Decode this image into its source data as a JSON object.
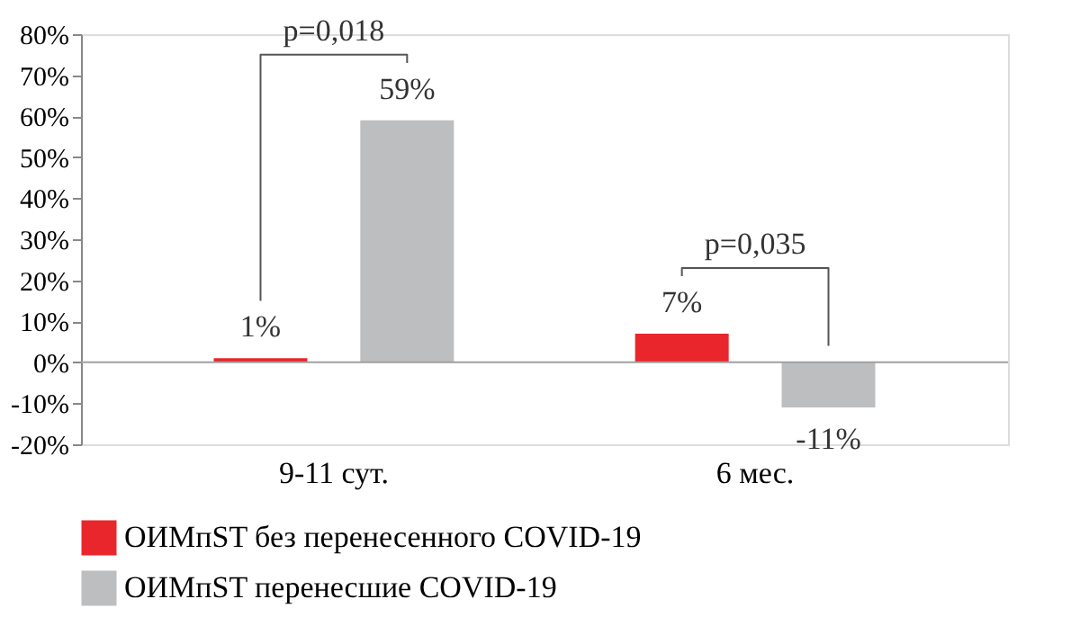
{
  "chart_data": {
    "type": "bar",
    "categories": [
      "9-11  сут.",
      "6 мес."
    ],
    "series": [
      {
        "name": "ОИМпST без перенесенного COVID-19",
        "color": "#e8262b",
        "values": [
          1,
          7
        ],
        "value_labels": [
          "1%",
          "7%"
        ]
      },
      {
        "name": "ОИМпST перенесшие COVID-19",
        "color": "#bcbec0",
        "values": [
          59,
          -11
        ],
        "value_labels": [
          "59%",
          "-11%"
        ]
      }
    ],
    "ylim": [
      -20,
      80
    ],
    "yticks": [
      {
        "value": -20,
        "label": "-20%"
      },
      {
        "value": -10,
        "label": "-10%"
      },
      {
        "value": 0,
        "label": "0%"
      },
      {
        "value": 10,
        "label": "10%"
      },
      {
        "value": 20,
        "label": "20%"
      },
      {
        "value": 30,
        "label": "30%"
      },
      {
        "value": 40,
        "label": "40%"
      },
      {
        "value": 50,
        "label": "50%"
      },
      {
        "value": 60,
        "label": "60%"
      },
      {
        "value": 70,
        "label": "70%"
      },
      {
        "value": 80,
        "label": "80%"
      }
    ],
    "ref_lines": [
      {
        "axis": "y",
        "value": 0,
        "color": "#a0a0a0"
      }
    ],
    "annotations": [
      "p=0,018",
      "p=0,035"
    ],
    "grid": false,
    "legend": "bottom"
  }
}
